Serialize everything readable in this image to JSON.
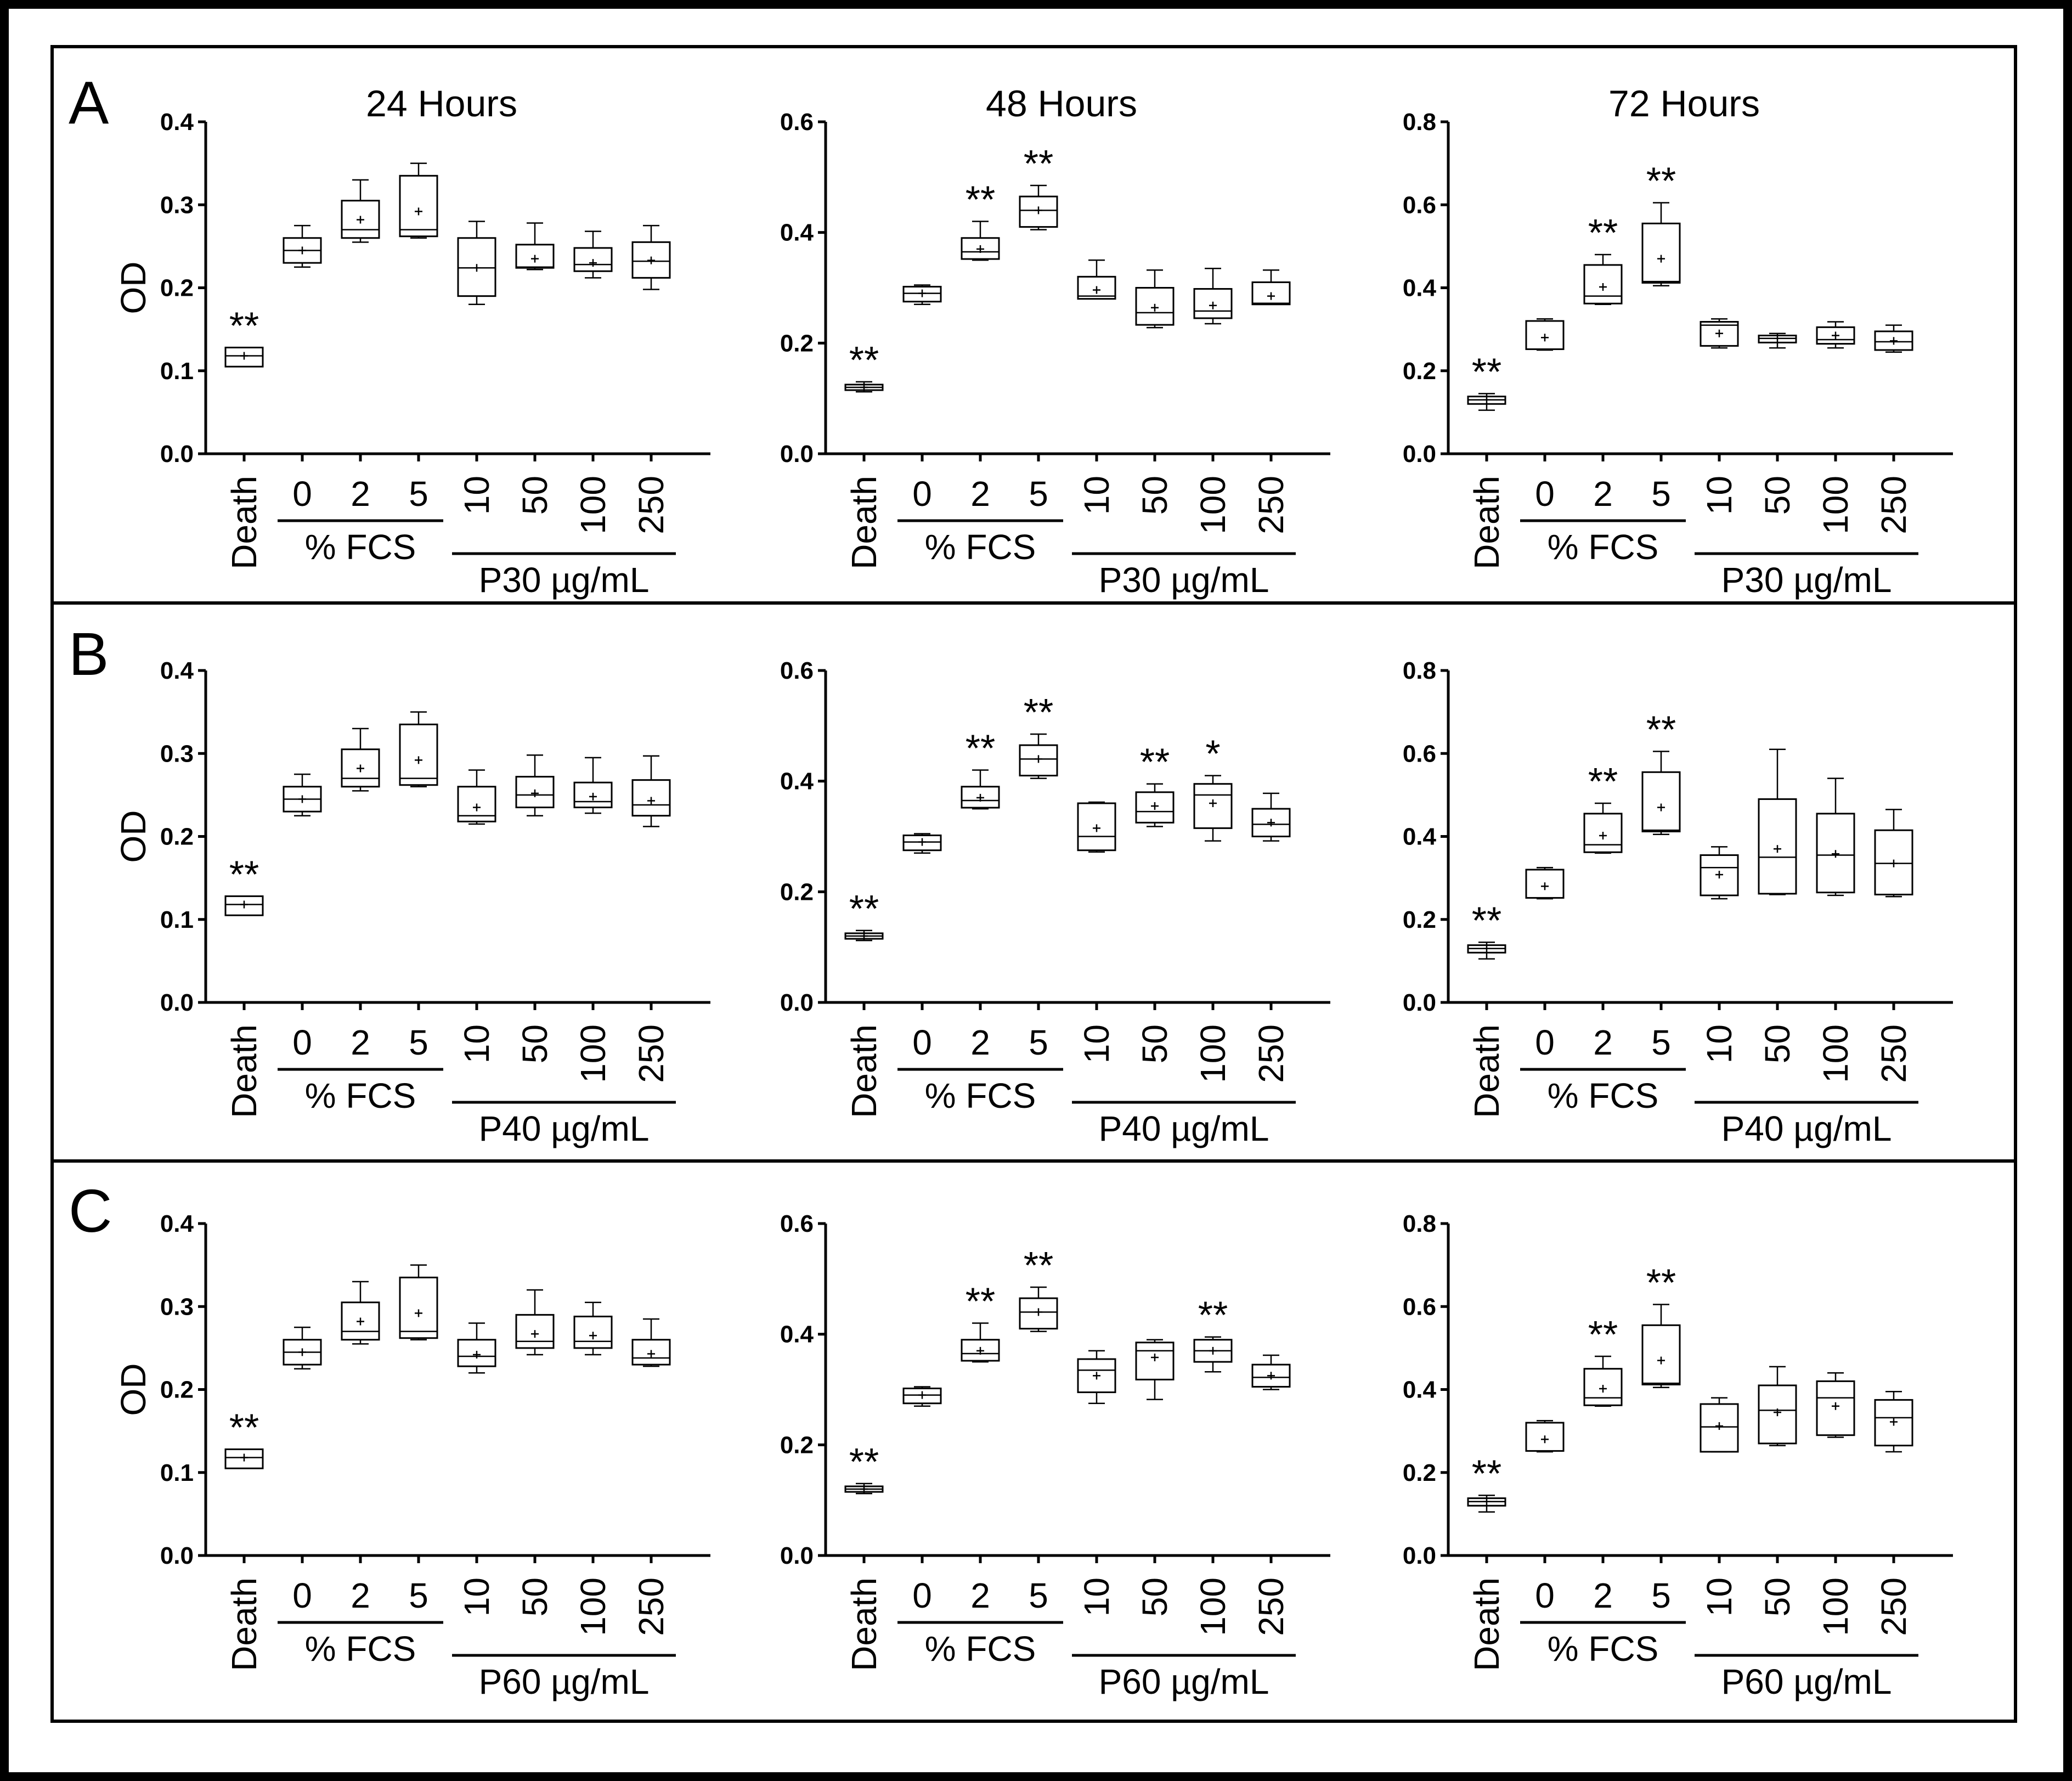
{
  "categories": [
    "Death",
    "0",
    "2",
    "5",
    "10",
    "50",
    "100",
    "250"
  ],
  "fcs_group_label": "% FCS",
  "ylabel": "OD",
  "panels": [
    {
      "label": "A",
      "peptide_group_label": "P30 µg/mL"
    },
    {
      "label": "B",
      "peptide_group_label": "P40 µg/mL"
    },
    {
      "label": "C",
      "peptide_group_label": "P60 µg/mL"
    }
  ],
  "column_titles": [
    "24 Hours",
    "48 Hours",
    "72 Hours"
  ],
  "chart_data": [
    {
      "type": "box",
      "panel": "A",
      "title": "24 Hours",
      "ylabel": "OD",
      "categories": [
        "Death",
        "0",
        "2",
        "5",
        "10",
        "50",
        "100",
        "250"
      ],
      "ylim": [
        0,
        0.4
      ],
      "yticks": [
        "0.0",
        "0.1",
        "0.2",
        "0.3",
        "0.4"
      ],
      "boxes": [
        {
          "min": 0.105,
          "q1": 0.105,
          "median": 0.118,
          "q3": 0.128,
          "max": 0.128,
          "mean": 0.118,
          "sig": "**"
        },
        {
          "min": 0.225,
          "q1": 0.23,
          "median": 0.245,
          "q3": 0.26,
          "max": 0.275,
          "mean": 0.245,
          "sig": ""
        },
        {
          "min": 0.255,
          "q1": 0.26,
          "median": 0.27,
          "q3": 0.305,
          "max": 0.33,
          "mean": 0.282,
          "sig": ""
        },
        {
          "min": 0.26,
          "q1": 0.262,
          "median": 0.27,
          "q3": 0.335,
          "max": 0.35,
          "mean": 0.292,
          "sig": ""
        },
        {
          "min": 0.18,
          "q1": 0.19,
          "median": 0.224,
          "q3": 0.26,
          "max": 0.28,
          "mean": 0.224,
          "sig": ""
        },
        {
          "min": 0.222,
          "q1": 0.224,
          "median": 0.225,
          "q3": 0.252,
          "max": 0.278,
          "mean": 0.235,
          "sig": ""
        },
        {
          "min": 0.212,
          "q1": 0.22,
          "median": 0.228,
          "q3": 0.248,
          "max": 0.268,
          "mean": 0.23,
          "sig": ""
        },
        {
          "min": 0.198,
          "q1": 0.212,
          "median": 0.232,
          "q3": 0.255,
          "max": 0.275,
          "mean": 0.233,
          "sig": ""
        }
      ]
    },
    {
      "type": "box",
      "panel": "A",
      "title": "48 Hours",
      "ylabel": "",
      "categories": [
        "Death",
        "0",
        "2",
        "5",
        "10",
        "50",
        "100",
        "250"
      ],
      "ylim": [
        0,
        0.6
      ],
      "yticks": [
        "0.0",
        "0.2",
        "0.4",
        "0.6"
      ],
      "boxes": [
        {
          "min": 0.112,
          "q1": 0.115,
          "median": 0.12,
          "q3": 0.125,
          "max": 0.13,
          "mean": 0.12,
          "sig": "**"
        },
        {
          "min": 0.27,
          "q1": 0.275,
          "median": 0.29,
          "q3": 0.302,
          "max": 0.305,
          "mean": 0.29,
          "sig": ""
        },
        {
          "min": 0.35,
          "q1": 0.352,
          "median": 0.365,
          "q3": 0.39,
          "max": 0.42,
          "mean": 0.37,
          "sig": "**"
        },
        {
          "min": 0.405,
          "q1": 0.41,
          "median": 0.44,
          "q3": 0.465,
          "max": 0.485,
          "mean": 0.44,
          "sig": "**"
        },
        {
          "min": 0.28,
          "q1": 0.28,
          "median": 0.285,
          "q3": 0.32,
          "max": 0.35,
          "mean": 0.296,
          "sig": ""
        },
        {
          "min": 0.228,
          "q1": 0.233,
          "median": 0.255,
          "q3": 0.3,
          "max": 0.332,
          "mean": 0.264,
          "sig": ""
        },
        {
          "min": 0.235,
          "q1": 0.245,
          "median": 0.258,
          "q3": 0.298,
          "max": 0.335,
          "mean": 0.268,
          "sig": ""
        },
        {
          "min": 0.27,
          "q1": 0.27,
          "median": 0.272,
          "q3": 0.31,
          "max": 0.332,
          "mean": 0.285,
          "sig": ""
        }
      ]
    },
    {
      "type": "box",
      "panel": "A",
      "title": "72 Hours",
      "ylabel": "",
      "categories": [
        "Death",
        "0",
        "2",
        "5",
        "10",
        "50",
        "100",
        "250"
      ],
      "ylim": [
        0,
        0.8
      ],
      "yticks": [
        "0.0",
        "0.2",
        "0.4",
        "0.6",
        "0.8"
      ],
      "boxes": [
        {
          "min": 0.105,
          "q1": 0.12,
          "median": 0.13,
          "q3": 0.138,
          "max": 0.145,
          "mean": 0.13,
          "sig": "**"
        },
        {
          "min": 0.25,
          "q1": 0.252,
          "median": 0.252,
          "q3": 0.32,
          "max": 0.325,
          "mean": 0.28,
          "sig": ""
        },
        {
          "min": 0.36,
          "q1": 0.362,
          "median": 0.38,
          "q3": 0.455,
          "max": 0.48,
          "mean": 0.402,
          "sig": "**"
        },
        {
          "min": 0.405,
          "q1": 0.412,
          "median": 0.415,
          "q3": 0.555,
          "max": 0.605,
          "mean": 0.47,
          "sig": "**"
        },
        {
          "min": 0.255,
          "q1": 0.26,
          "median": 0.31,
          "q3": 0.318,
          "max": 0.325,
          "mean": 0.29,
          "sig": ""
        },
        {
          "min": 0.255,
          "q1": 0.268,
          "median": 0.278,
          "q3": 0.285,
          "max": 0.29,
          "mean": 0.278,
          "sig": ""
        },
        {
          "min": 0.255,
          "q1": 0.265,
          "median": 0.275,
          "q3": 0.305,
          "max": 0.318,
          "mean": 0.285,
          "sig": ""
        },
        {
          "min": 0.245,
          "q1": 0.25,
          "median": 0.27,
          "q3": 0.295,
          "max": 0.31,
          "mean": 0.272,
          "sig": ""
        }
      ]
    },
    {
      "type": "box",
      "panel": "B",
      "title": "",
      "ylabel": "OD",
      "categories": [
        "Death",
        "0",
        "2",
        "5",
        "10",
        "50",
        "100",
        "250"
      ],
      "ylim": [
        0,
        0.4
      ],
      "yticks": [
        "0.0",
        "0.1",
        "0.2",
        "0.3",
        "0.4"
      ],
      "boxes": [
        {
          "min": 0.105,
          "q1": 0.105,
          "median": 0.118,
          "q3": 0.128,
          "max": 0.128,
          "mean": 0.118,
          "sig": "**"
        },
        {
          "min": 0.225,
          "q1": 0.23,
          "median": 0.245,
          "q3": 0.26,
          "max": 0.275,
          "mean": 0.245,
          "sig": ""
        },
        {
          "min": 0.255,
          "q1": 0.26,
          "median": 0.27,
          "q3": 0.305,
          "max": 0.33,
          "mean": 0.282,
          "sig": ""
        },
        {
          "min": 0.26,
          "q1": 0.262,
          "median": 0.27,
          "q3": 0.335,
          "max": 0.35,
          "mean": 0.292,
          "sig": ""
        },
        {
          "min": 0.215,
          "q1": 0.218,
          "median": 0.225,
          "q3": 0.26,
          "max": 0.28,
          "mean": 0.235,
          "sig": ""
        },
        {
          "min": 0.225,
          "q1": 0.235,
          "median": 0.25,
          "q3": 0.272,
          "max": 0.298,
          "mean": 0.252,
          "sig": ""
        },
        {
          "min": 0.228,
          "q1": 0.235,
          "median": 0.242,
          "q3": 0.265,
          "max": 0.295,
          "mean": 0.248,
          "sig": ""
        },
        {
          "min": 0.212,
          "q1": 0.225,
          "median": 0.238,
          "q3": 0.268,
          "max": 0.297,
          "mean": 0.243,
          "sig": ""
        }
      ]
    },
    {
      "type": "box",
      "panel": "B",
      "title": "",
      "ylabel": "",
      "categories": [
        "Death",
        "0",
        "2",
        "5",
        "10",
        "50",
        "100",
        "250"
      ],
      "ylim": [
        0,
        0.6
      ],
      "yticks": [
        "0.0",
        "0.2",
        "0.4",
        "0.6"
      ],
      "boxes": [
        {
          "min": 0.112,
          "q1": 0.115,
          "median": 0.12,
          "q3": 0.125,
          "max": 0.13,
          "mean": 0.12,
          "sig": "**"
        },
        {
          "min": 0.27,
          "q1": 0.275,
          "median": 0.29,
          "q3": 0.302,
          "max": 0.305,
          "mean": 0.29,
          "sig": ""
        },
        {
          "min": 0.35,
          "q1": 0.352,
          "median": 0.365,
          "q3": 0.39,
          "max": 0.42,
          "mean": 0.37,
          "sig": "**"
        },
        {
          "min": 0.405,
          "q1": 0.41,
          "median": 0.44,
          "q3": 0.465,
          "max": 0.485,
          "mean": 0.44,
          "sig": "**"
        },
        {
          "min": 0.272,
          "q1": 0.275,
          "median": 0.3,
          "q3": 0.36,
          "max": 0.362,
          "mean": 0.315,
          "sig": ""
        },
        {
          "min": 0.318,
          "q1": 0.325,
          "median": 0.345,
          "q3": 0.38,
          "max": 0.395,
          "mean": 0.355,
          "sig": "**"
        },
        {
          "min": 0.292,
          "q1": 0.315,
          "median": 0.375,
          "q3": 0.395,
          "max": 0.41,
          "mean": 0.36,
          "sig": "*"
        },
        {
          "min": 0.292,
          "q1": 0.3,
          "median": 0.322,
          "q3": 0.35,
          "max": 0.378,
          "mean": 0.325,
          "sig": ""
        }
      ]
    },
    {
      "type": "box",
      "panel": "B",
      "title": "",
      "ylabel": "",
      "categories": [
        "Death",
        "0",
        "2",
        "5",
        "10",
        "50",
        "100",
        "250"
      ],
      "ylim": [
        0,
        0.8
      ],
      "yticks": [
        "0.0",
        "0.2",
        "0.4",
        "0.6",
        "0.8"
      ],
      "boxes": [
        {
          "min": 0.105,
          "q1": 0.12,
          "median": 0.13,
          "q3": 0.138,
          "max": 0.145,
          "mean": 0.13,
          "sig": "**"
        },
        {
          "min": 0.25,
          "q1": 0.252,
          "median": 0.252,
          "q3": 0.32,
          "max": 0.325,
          "mean": 0.28,
          "sig": ""
        },
        {
          "min": 0.36,
          "q1": 0.362,
          "median": 0.38,
          "q3": 0.455,
          "max": 0.48,
          "mean": 0.402,
          "sig": "**"
        },
        {
          "min": 0.405,
          "q1": 0.412,
          "median": 0.415,
          "q3": 0.555,
          "max": 0.605,
          "mean": 0.47,
          "sig": "**"
        },
        {
          "min": 0.25,
          "q1": 0.258,
          "median": 0.325,
          "q3": 0.355,
          "max": 0.375,
          "mean": 0.308,
          "sig": ""
        },
        {
          "min": 0.26,
          "q1": 0.262,
          "median": 0.35,
          "q3": 0.49,
          "max": 0.61,
          "mean": 0.37,
          "sig": ""
        },
        {
          "min": 0.258,
          "q1": 0.265,
          "median": 0.355,
          "q3": 0.455,
          "max": 0.54,
          "mean": 0.358,
          "sig": ""
        },
        {
          "min": 0.255,
          "q1": 0.26,
          "median": 0.335,
          "q3": 0.415,
          "max": 0.465,
          "mean": 0.335,
          "sig": ""
        }
      ]
    },
    {
      "type": "box",
      "panel": "C",
      "title": "",
      "ylabel": "OD",
      "categories": [
        "Death",
        "0",
        "2",
        "5",
        "10",
        "50",
        "100",
        "250"
      ],
      "ylim": [
        0,
        0.4
      ],
      "yticks": [
        "0.0",
        "0.1",
        "0.2",
        "0.3",
        "0.4"
      ],
      "boxes": [
        {
          "min": 0.105,
          "q1": 0.105,
          "median": 0.118,
          "q3": 0.128,
          "max": 0.128,
          "mean": 0.118,
          "sig": "**"
        },
        {
          "min": 0.225,
          "q1": 0.23,
          "median": 0.245,
          "q3": 0.26,
          "max": 0.275,
          "mean": 0.245,
          "sig": ""
        },
        {
          "min": 0.255,
          "q1": 0.26,
          "median": 0.27,
          "q3": 0.305,
          "max": 0.33,
          "mean": 0.282,
          "sig": ""
        },
        {
          "min": 0.26,
          "q1": 0.262,
          "median": 0.27,
          "q3": 0.335,
          "max": 0.35,
          "mean": 0.292,
          "sig": ""
        },
        {
          "min": 0.22,
          "q1": 0.228,
          "median": 0.24,
          "q3": 0.26,
          "max": 0.28,
          "mean": 0.242,
          "sig": ""
        },
        {
          "min": 0.242,
          "q1": 0.25,
          "median": 0.258,
          "q3": 0.29,
          "max": 0.32,
          "mean": 0.267,
          "sig": ""
        },
        {
          "min": 0.242,
          "q1": 0.25,
          "median": 0.258,
          "q3": 0.288,
          "max": 0.305,
          "mean": 0.265,
          "sig": ""
        },
        {
          "min": 0.228,
          "q1": 0.23,
          "median": 0.238,
          "q3": 0.26,
          "max": 0.285,
          "mean": 0.243,
          "sig": ""
        }
      ]
    },
    {
      "type": "box",
      "panel": "C",
      "title": "",
      "ylabel": "",
      "categories": [
        "Death",
        "0",
        "2",
        "5",
        "10",
        "50",
        "100",
        "250"
      ],
      "ylim": [
        0,
        0.6
      ],
      "yticks": [
        "0.0",
        "0.2",
        "0.4",
        "0.6"
      ],
      "boxes": [
        {
          "min": 0.112,
          "q1": 0.115,
          "median": 0.12,
          "q3": 0.125,
          "max": 0.13,
          "mean": 0.12,
          "sig": "**"
        },
        {
          "min": 0.27,
          "q1": 0.275,
          "median": 0.29,
          "q3": 0.302,
          "max": 0.305,
          "mean": 0.29,
          "sig": ""
        },
        {
          "min": 0.35,
          "q1": 0.352,
          "median": 0.365,
          "q3": 0.39,
          "max": 0.42,
          "mean": 0.37,
          "sig": "**"
        },
        {
          "min": 0.405,
          "q1": 0.41,
          "median": 0.44,
          "q3": 0.465,
          "max": 0.485,
          "mean": 0.44,
          "sig": "**"
        },
        {
          "min": 0.275,
          "q1": 0.295,
          "median": 0.335,
          "q3": 0.355,
          "max": 0.37,
          "mean": 0.325,
          "sig": ""
        },
        {
          "min": 0.282,
          "q1": 0.318,
          "median": 0.37,
          "q3": 0.385,
          "max": 0.39,
          "mean": 0.358,
          "sig": ""
        },
        {
          "min": 0.332,
          "q1": 0.35,
          "median": 0.37,
          "q3": 0.39,
          "max": 0.395,
          "mean": 0.37,
          "sig": "**"
        },
        {
          "min": 0.3,
          "q1": 0.305,
          "median": 0.322,
          "q3": 0.345,
          "max": 0.362,
          "mean": 0.325,
          "sig": ""
        }
      ]
    },
    {
      "type": "box",
      "panel": "C",
      "title": "",
      "ylabel": "",
      "categories": [
        "Death",
        "0",
        "2",
        "5",
        "10",
        "50",
        "100",
        "250"
      ],
      "ylim": [
        0,
        0.8
      ],
      "yticks": [
        "0.0",
        "0.2",
        "0.4",
        "0.6",
        "0.8"
      ],
      "boxes": [
        {
          "min": 0.105,
          "q1": 0.12,
          "median": 0.13,
          "q3": 0.138,
          "max": 0.145,
          "mean": 0.13,
          "sig": "**"
        },
        {
          "min": 0.25,
          "q1": 0.252,
          "median": 0.252,
          "q3": 0.32,
          "max": 0.325,
          "mean": 0.28,
          "sig": ""
        },
        {
          "min": 0.36,
          "q1": 0.362,
          "median": 0.38,
          "q3": 0.45,
          "max": 0.48,
          "mean": 0.402,
          "sig": "**"
        },
        {
          "min": 0.405,
          "q1": 0.412,
          "median": 0.415,
          "q3": 0.555,
          "max": 0.605,
          "mean": 0.47,
          "sig": "**"
        },
        {
          "min": 0.25,
          "q1": 0.25,
          "median": 0.31,
          "q3": 0.365,
          "max": 0.38,
          "mean": 0.312,
          "sig": ""
        },
        {
          "min": 0.265,
          "q1": 0.27,
          "median": 0.35,
          "q3": 0.41,
          "max": 0.455,
          "mean": 0.345,
          "sig": ""
        },
        {
          "min": 0.285,
          "q1": 0.29,
          "median": 0.38,
          "q3": 0.42,
          "max": 0.44,
          "mean": 0.36,
          "sig": ""
        },
        {
          "min": 0.25,
          "q1": 0.265,
          "median": 0.332,
          "q3": 0.375,
          "max": 0.395,
          "mean": 0.322,
          "sig": ""
        }
      ]
    }
  ]
}
